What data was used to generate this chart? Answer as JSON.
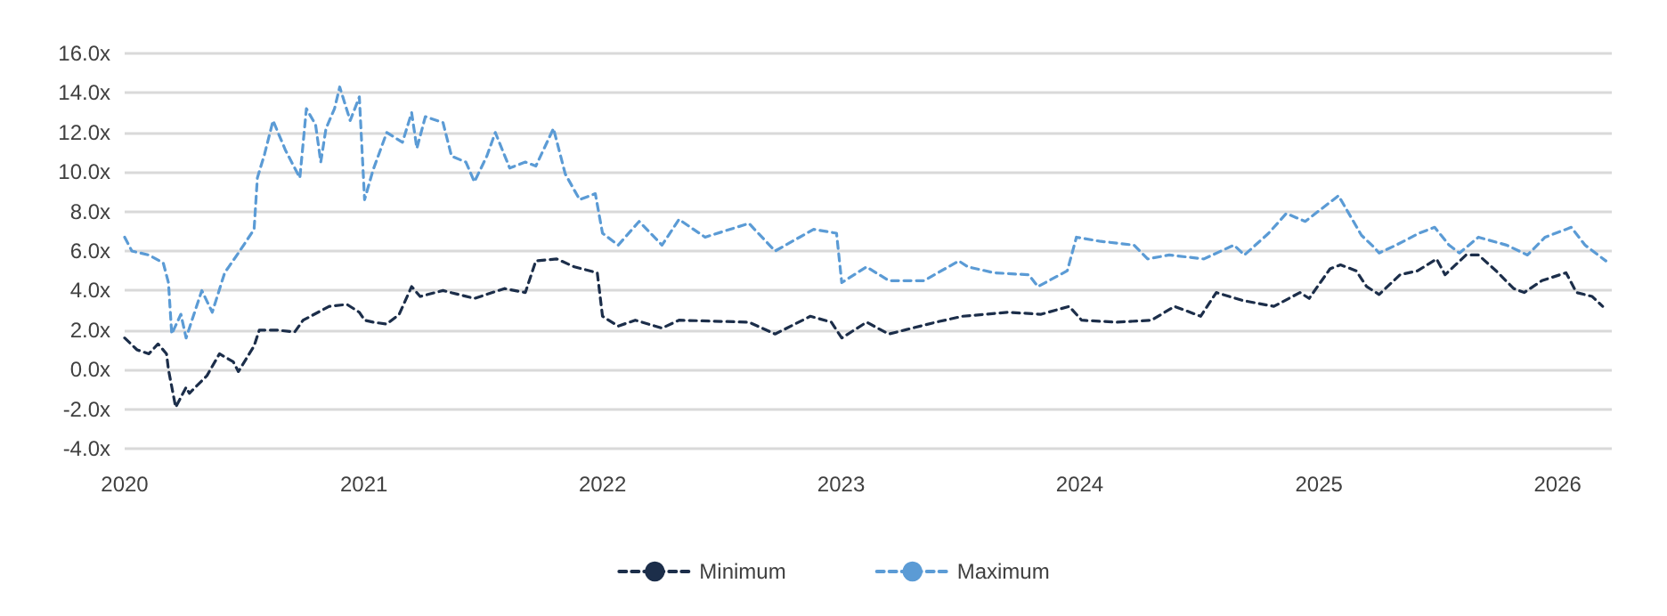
{
  "chart_data": {
    "type": "line",
    "xlim": [
      "2020",
      "2026-03-25"
    ],
    "xticks": [
      "2020",
      "2021",
      "2022",
      "2023",
      "2024",
      "2025",
      "2026"
    ],
    "ylim": [
      -4,
      16
    ],
    "yticks": [
      {
        "value": -4,
        "label": "-4.0x"
      },
      {
        "value": -2,
        "label": "-2.0x"
      },
      {
        "value": 0,
        "label": "0.0x"
      },
      {
        "value": 2,
        "label": "2.0x"
      },
      {
        "value": 4,
        "label": "4.0x"
      },
      {
        "value": 6,
        "label": "6.0x"
      },
      {
        "value": 8,
        "label": "8.0x"
      },
      {
        "value": 10,
        "label": "10.0x"
      },
      {
        "value": 12,
        "label": "12.0x"
      },
      {
        "value": 14,
        "label": "14.0x"
      },
      {
        "value": 16,
        "label": "16.0x"
      }
    ],
    "grid": "y",
    "legend": "bottom",
    "marker": "none",
    "line_style": "dashed",
    "series": [
      {
        "name": "Minimum",
        "color": "#1c2e4a",
        "x": [
          "2020-01-01",
          "2020-01-20",
          "2020-02-07",
          "2020-02-21",
          "2020-03-05",
          "2020-03-08",
          "2020-03-19",
          "2020-04-04",
          "2020-04-09",
          "2020-05-06",
          "2020-05-25",
          "2020-06-15",
          "2020-06-23",
          "2020-07-17",
          "2020-07-25",
          "2020-08-21",
          "2020-09-17",
          "2020-09-30",
          "2020-11-09",
          "2020-12-06",
          "2020-12-25",
          "2021-01-02",
          "2021-01-15",
          "2021-02-05",
          "2021-02-24",
          "2021-03-15",
          "2021-03-28",
          "2021-05-02",
          "2021-06-19",
          "2021-08-04",
          "2021-09-05",
          "2021-09-21",
          "2021-10-23",
          "2021-11-19",
          "2021-12-24",
          "2022-01-01",
          "2022-01-25",
          "2022-02-20",
          "2022-04-02",
          "2022-04-28",
          "2022-08-13",
          "2022-09-22",
          "2022-11-15",
          "2022-12-17",
          "2023-01-02",
          "2023-02-09",
          "2023-03-15",
          "2023-05-26",
          "2023-07-06",
          "2023-09-13",
          "2023-11-03",
          "2023-12-16",
          "2024-01-04",
          "2024-02-26",
          "2024-04-20",
          "2024-05-25",
          "2024-07-04",
          "2024-07-28",
          "2024-09-06",
          "2024-10-24",
          "2024-12-03",
          "2024-12-17",
          "2025-01-18",
          "2025-02-03",
          "2025-02-27",
          "2025-03-15",
          "2025-04-03",
          "2025-05-05",
          "2025-06-01",
          "2025-06-30",
          "2025-07-13",
          "2025-08-14",
          "2025-09-02",
          "2025-09-29",
          "2025-10-26",
          "2025-11-11",
          "2025-12-08",
          "2026-01-14",
          "2026-01-30",
          "2026-02-23",
          "2026-03-11"
        ],
        "values": [
          1.6,
          1.0,
          0.8,
          1.3,
          0.8,
          0.0,
          -1.9,
          -0.9,
          -1.2,
          -0.3,
          0.8,
          0.4,
          -0.1,
          1.2,
          2.0,
          2.0,
          1.9,
          2.5,
          3.2,
          3.3,
          2.9,
          2.5,
          2.4,
          2.3,
          2.8,
          4.2,
          3.7,
          4.0,
          3.6,
          4.1,
          3.9,
          5.5,
          5.6,
          5.2,
          4.9,
          2.7,
          2.2,
          2.5,
          2.1,
          2.5,
          2.4,
          1.8,
          2.7,
          2.4,
          1.6,
          2.4,
          1.8,
          2.4,
          2.7,
          2.9,
          2.8,
          3.2,
          2.5,
          2.4,
          2.5,
          3.2,
          2.7,
          3.9,
          3.5,
          3.2,
          3.9,
          3.6,
          5.1,
          5.3,
          5.0,
          4.2,
          3.8,
          4.8,
          5.0,
          5.6,
          4.8,
          5.8,
          5.8,
          5.0,
          4.1,
          3.9,
          4.5,
          4.9,
          3.9,
          3.7,
          3.2
        ]
      },
      {
        "name": "Maximum",
        "color": "#5b9bd5",
        "x": [
          "2020-01-01",
          "2020-01-12",
          "2020-02-07",
          "2020-02-29",
          "2020-03-08",
          "2020-03-13",
          "2020-03-27",
          "2020-04-04",
          "2020-04-28",
          "2020-05-14",
          "2020-06-02",
          "2020-06-23",
          "2020-07-17",
          "2020-07-22",
          "2020-08-02",
          "2020-08-15",
          "2020-09-03",
          "2020-09-25",
          "2020-10-05",
          "2020-10-19",
          "2020-10-27",
          "2020-11-04",
          "2020-11-17",
          "2020-11-25",
          "2020-12-11",
          "2020-12-25",
          "2021-01-02",
          "2021-01-15",
          "2021-02-05",
          "2021-03-01",
          "2021-03-15",
          "2021-03-23",
          "2021-04-05",
          "2021-05-02",
          "2021-05-15",
          "2021-06-06",
          "2021-06-19",
          "2021-07-08",
          "2021-07-21",
          "2021-08-12",
          "2021-09-05",
          "2021-09-21",
          "2021-10-18",
          "2021-11-05",
          "2021-11-27",
          "2021-12-21",
          "2022-01-01",
          "2022-01-25",
          "2022-02-26",
          "2022-04-02",
          "2022-04-28",
          "2022-06-07",
          "2022-08-13",
          "2022-09-22",
          "2022-11-20",
          "2022-12-25",
          "2023-01-02",
          "2023-02-09",
          "2023-03-15",
          "2023-05-08",
          "2023-06-30",
          "2023-07-14",
          "2023-08-23",
          "2023-10-15",
          "2023-10-29",
          "2023-12-13",
          "2023-12-27",
          "2024-01-31",
          "2024-03-24",
          "2024-04-14",
          "2024-05-17",
          "2024-07-09",
          "2024-08-24",
          "2024-09-09",
          "2024-10-16",
          "2024-11-12",
          "2024-12-11",
          "2025-01-31",
          "2025-02-14",
          "2025-03-07",
          "2025-03-26",
          "2025-04-03",
          "2025-04-29",
          "2025-06-03",
          "2025-06-27",
          "2025-07-19",
          "2025-08-04",
          "2025-09-02",
          "2025-10-15",
          "2025-11-16",
          "2025-12-13",
          "2026-01-22",
          "2026-02-12",
          "2026-03-16"
        ],
        "values": [
          6.7,
          6.0,
          5.8,
          5.4,
          4.4,
          1.8,
          2.8,
          1.6,
          4.0,
          2.9,
          4.9,
          5.9,
          7.1,
          9.7,
          10.9,
          12.6,
          11.1,
          9.7,
          13.2,
          12.4,
          10.5,
          12.2,
          13.2,
          14.3,
          12.6,
          13.8,
          8.6,
          10.1,
          12.0,
          11.5,
          13.0,
          11.2,
          12.8,
          12.5,
          10.8,
          10.5,
          9.5,
          10.8,
          12.0,
          10.2,
          10.5,
          10.3,
          12.2,
          9.9,
          8.6,
          8.9,
          6.9,
          6.3,
          7.5,
          6.3,
          7.6,
          6.7,
          7.4,
          6.0,
          7.1,
          6.9,
          4.4,
          5.2,
          4.5,
          4.5,
          5.5,
          5.2,
          4.9,
          4.8,
          4.2,
          5.0,
          6.7,
          6.5,
          6.3,
          5.6,
          5.8,
          5.6,
          6.3,
          5.8,
          6.9,
          7.9,
          7.5,
          8.8,
          8.0,
          6.8,
          6.2,
          5.9,
          6.3,
          6.9,
          7.2,
          6.3,
          5.9,
          6.7,
          6.3,
          5.8,
          6.7,
          7.2,
          6.3,
          5.5
        ]
      }
    ]
  }
}
